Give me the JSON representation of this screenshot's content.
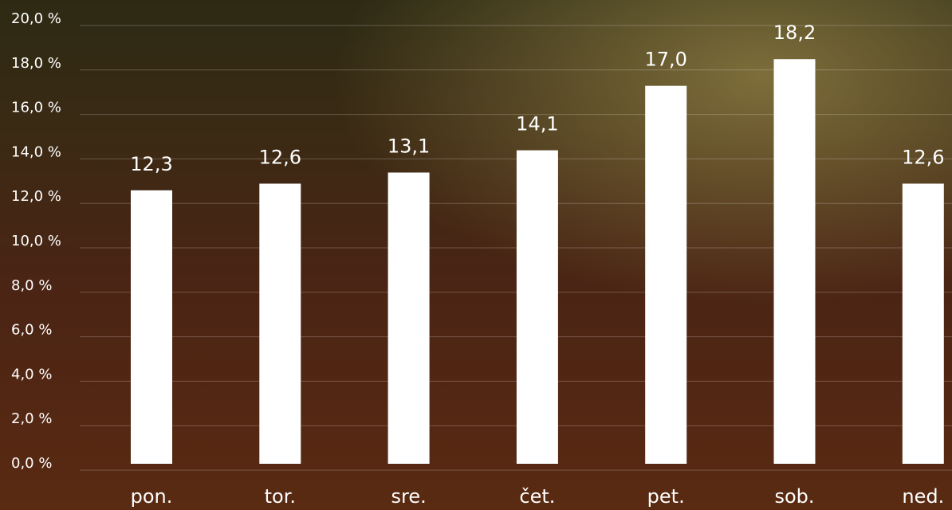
{
  "chart_data": {
    "type": "bar",
    "categories": [
      "pon.",
      "tor.",
      "sre.",
      "čet.",
      "pet.",
      "sob.",
      "ned."
    ],
    "values": [
      12.3,
      12.6,
      13.1,
      14.1,
      17.0,
      18.2,
      12.6
    ],
    "value_labels": [
      "12,3",
      "12,6",
      "13,1",
      "14,1",
      "17,0",
      "18,2",
      "12,6"
    ],
    "color": "#ffffff",
    "ylim": [
      0,
      20
    ],
    "yticks": [
      {
        "value": 0,
        "label": "0,0 %"
      },
      {
        "value": 2,
        "label": "2,0 %"
      },
      {
        "value": 4,
        "label": "4,0 %"
      },
      {
        "value": 6,
        "label": "6,0 %"
      },
      {
        "value": 8,
        "label": "8,0 %"
      },
      {
        "value": 10,
        "label": "10,0 %"
      },
      {
        "value": 12,
        "label": "12,0 %"
      },
      {
        "value": 14,
        "label": "14,0 %"
      },
      {
        "value": 16,
        "label": "16,0 %"
      },
      {
        "value": 18,
        "label": "18,0 %"
      },
      {
        "value": 20,
        "label": "20,0 %"
      }
    ],
    "grid": true
  }
}
